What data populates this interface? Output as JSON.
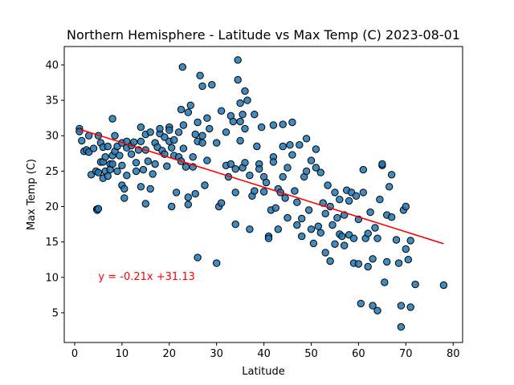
{
  "chart_data": {
    "type": "scatter",
    "title": "Northern Hemisphere - Latitude vs Max Temp (C) 2023-08-01",
    "xlabel": "Latitude",
    "ylabel": "Max Temp (C)",
    "xlim": [
      -2.2,
      82
    ],
    "ylim": [
      0.8,
      42.6
    ],
    "xticks": [
      0,
      10,
      20,
      30,
      40,
      50,
      60,
      70,
      80
    ],
    "yticks": [
      5,
      10,
      15,
      20,
      25,
      30,
      35,
      40
    ],
    "grid": false,
    "colors": {
      "marker_fill": "#1f77b4",
      "marker_edge": "#000000",
      "regression_line": "#ff0000",
      "annotation": "#ff0000"
    },
    "regression": {
      "slope": -0.21,
      "intercept": 31.13,
      "x_range": [
        1,
        78
      ],
      "label": "y = -0.21x +31.13",
      "label_at": [
        5,
        10.2
      ]
    },
    "points": [
      [
        1,
        31
      ],
      [
        1,
        30.6
      ],
      [
        1.5,
        29.3
      ],
      [
        2,
        27.8
      ],
      [
        2.5,
        28
      ],
      [
        3,
        30
      ],
      [
        3,
        27.7
      ],
      [
        3.5,
        24.5
      ],
      [
        4,
        28.2
      ],
      [
        4.5,
        25
      ],
      [
        4.7,
        19.6
      ],
      [
        4.8,
        19.5
      ],
      [
        5,
        19.7
      ],
      [
        5,
        24.8
      ],
      [
        5,
        30
      ],
      [
        5.5,
        29
      ],
      [
        5.5,
        26.3
      ],
      [
        6,
        26.3
      ],
      [
        6,
        24
      ],
      [
        6,
        28.4
      ],
      [
        6.5,
        27
      ],
      [
        6.5,
        25
      ],
      [
        7,
        28.5
      ],
      [
        7,
        24.3
      ],
      [
        7.5,
        26
      ],
      [
        7.5,
        25.2
      ],
      [
        8,
        27.2
      ],
      [
        8,
        32.4
      ],
      [
        8,
        26
      ],
      [
        8.5,
        27.8
      ],
      [
        8.5,
        30
      ],
      [
        9,
        25
      ],
      [
        9,
        28.5
      ],
      [
        9.5,
        27.2
      ],
      [
        10,
        29
      ],
      [
        10,
        23
      ],
      [
        10,
        25.8
      ],
      [
        10.5,
        22.5
      ],
      [
        10.5,
        21.2
      ],
      [
        11,
        28.3
      ],
      [
        11,
        24.4
      ],
      [
        11,
        29.2
      ],
      [
        12,
        27.4
      ],
      [
        12,
        28.6
      ],
      [
        12.5,
        29.1
      ],
      [
        13,
        25
      ],
      [
        13,
        26.2
      ],
      [
        13.5,
        28
      ],
      [
        14,
        31.2
      ],
      [
        14,
        29.2
      ],
      [
        14,
        22.8
      ],
      [
        14.5,
        25.2
      ],
      [
        15,
        20.4
      ],
      [
        15,
        28
      ],
      [
        15,
        30.2
      ],
      [
        15.5,
        26.4
      ],
      [
        16,
        22.5
      ],
      [
        16,
        30.5
      ],
      [
        16.5,
        24.6
      ],
      [
        17,
        29
      ],
      [
        17,
        26
      ],
      [
        17.5,
        28.4
      ],
      [
        18,
        30.3
      ],
      [
        18,
        31
      ],
      [
        18.5,
        27.9
      ],
      [
        19,
        29.8
      ],
      [
        19,
        27.4
      ],
      [
        19.5,
        25.7
      ],
      [
        20,
        31.2
      ],
      [
        20,
        30.8
      ],
      [
        20,
        29.2
      ],
      [
        20.5,
        20
      ],
      [
        20.5,
        28.3
      ],
      [
        21,
        27.2
      ],
      [
        21,
        29.4
      ],
      [
        21.5,
        22
      ],
      [
        22,
        30.5
      ],
      [
        22,
        27
      ],
      [
        22.5,
        26.4
      ],
      [
        22.5,
        33.7
      ],
      [
        22.8,
        39.7
      ],
      [
        23,
        28.2
      ],
      [
        23,
        31.5
      ],
      [
        23.5,
        25.6
      ],
      [
        24,
        20.3
      ],
      [
        24,
        33.3
      ],
      [
        24,
        21.3
      ],
      [
        24.5,
        34.3
      ],
      [
        25,
        27
      ],
      [
        25,
        25.6
      ],
      [
        25.5,
        30.2
      ],
      [
        25.5,
        21.8
      ],
      [
        26,
        12.8
      ],
      [
        26,
        29.2
      ],
      [
        26,
        31.9
      ],
      [
        26.5,
        38.5
      ],
      [
        27,
        30
      ],
      [
        27,
        37
      ],
      [
        27,
        29
      ],
      [
        27.5,
        23
      ],
      [
        28,
        32.5
      ],
      [
        28,
        26.5
      ],
      [
        28.5,
        31
      ],
      [
        29,
        37.2
      ],
      [
        30,
        29
      ],
      [
        30,
        12
      ],
      [
        30.5,
        20
      ],
      [
        31,
        33.5
      ],
      [
        31,
        20.5
      ],
      [
        32,
        25.8
      ],
      [
        32,
        30.5
      ],
      [
        32.5,
        24.2
      ],
      [
        33,
        26
      ],
      [
        33,
        32.8
      ],
      [
        33.5,
        32
      ],
      [
        34,
        17.5
      ],
      [
        34,
        22
      ],
      [
        34,
        25.3
      ],
      [
        34.5,
        40.7
      ],
      [
        34.5,
        37.9
      ],
      [
        35,
        34.6
      ],
      [
        35,
        32
      ],
      [
        35,
        29.3
      ],
      [
        35.5,
        33
      ],
      [
        35.5,
        25.5
      ],
      [
        36,
        36.3
      ],
      [
        36,
        31
      ],
      [
        36,
        26.2
      ],
      [
        36.5,
        35
      ],
      [
        37,
        24.4
      ],
      [
        37,
        16.8
      ],
      [
        37.5,
        21.5
      ],
      [
        38,
        33
      ],
      [
        38,
        22.2
      ],
      [
        38.5,
        28.5
      ],
      [
        39,
        26
      ],
      [
        39,
        25.3
      ],
      [
        39.5,
        31.2
      ],
      [
        40,
        24.2
      ],
      [
        40,
        22.1
      ],
      [
        40.5,
        23.4
      ],
      [
        41,
        15.8
      ],
      [
        41,
        15.5
      ],
      [
        41.5,
        19.5
      ],
      [
        42,
        27
      ],
      [
        42,
        31.5
      ],
      [
        42,
        26.3
      ],
      [
        42.5,
        19.8
      ],
      [
        43,
        22.5
      ],
      [
        43,
        16.8
      ],
      [
        43.5,
        22
      ],
      [
        44,
        28.5
      ],
      [
        44,
        24.2
      ],
      [
        44,
        31.6
      ],
      [
        44.5,
        21.2
      ],
      [
        45,
        25.5
      ],
      [
        45,
        18.4
      ],
      [
        45.5,
        28.7
      ],
      [
        46,
        31.9
      ],
      [
        46,
        27.3
      ],
      [
        46.5,
        22.2
      ],
      [
        47,
        20.6
      ],
      [
        47,
        17.4
      ],
      [
        47.5,
        28.7
      ],
      [
        48,
        18.3
      ],
      [
        48,
        15.8
      ],
      [
        48.5,
        24.2
      ],
      [
        49,
        29.6
      ],
      [
        49,
        25
      ],
      [
        49.5,
        19.5
      ],
      [
        50,
        26.5
      ],
      [
        50,
        16.8
      ],
      [
        50.5,
        14.8
      ],
      [
        51,
        28.1
      ],
      [
        51,
        25.5
      ],
      [
        51.5,
        17.2
      ],
      [
        52,
        24.8
      ],
      [
        52,
        16.3
      ],
      [
        52.5,
        20.5
      ],
      [
        53,
        13.5
      ],
      [
        53,
        19
      ],
      [
        53.5,
        23
      ],
      [
        54,
        12.3
      ],
      [
        54,
        20
      ],
      [
        54.5,
        17.4
      ],
      [
        55,
        22
      ],
      [
        55,
        14.7
      ],
      [
        55.5,
        18.4
      ],
      [
        56,
        16.1
      ],
      [
        56,
        21
      ],
      [
        56.5,
        15.8
      ],
      [
        57,
        14.5
      ],
      [
        57,
        18.8
      ],
      [
        57.5,
        22.3
      ],
      [
        58,
        16
      ],
      [
        58,
        20.8
      ],
      [
        58.5,
        22
      ],
      [
        59,
        12
      ],
      [
        59,
        15.5
      ],
      [
        59.5,
        21.5
      ],
      [
        60,
        11.9
      ],
      [
        60,
        18.2
      ],
      [
        60.5,
        6.3
      ],
      [
        61,
        25.2
      ],
      [
        61,
        22
      ],
      [
        61.5,
        15.5
      ],
      [
        62,
        11.5
      ],
      [
        62,
        16.2
      ],
      [
        62.5,
        19.2
      ],
      [
        63,
        12.6
      ],
      [
        63,
        6
      ],
      [
        63.5,
        17
      ],
      [
        64,
        5.3
      ],
      [
        64,
        15.5
      ],
      [
        64.5,
        21
      ],
      [
        65,
        25.8
      ],
      [
        65,
        26
      ],
      [
        65.5,
        9.3
      ],
      [
        66,
        12.2
      ],
      [
        66,
        18.8
      ],
      [
        66.5,
        22.8
      ],
      [
        67,
        24.5
      ],
      [
        67,
        18.5
      ],
      [
        68,
        15.3
      ],
      [
        68.5,
        12
      ],
      [
        69,
        3
      ],
      [
        69,
        6
      ],
      [
        69.5,
        19.5
      ],
      [
        70,
        20
      ],
      [
        70,
        14
      ],
      [
        70.5,
        12.5
      ],
      [
        71,
        15.2
      ],
      [
        71,
        5.8
      ],
      [
        72,
        9
      ],
      [
        78,
        8.9
      ]
    ]
  }
}
